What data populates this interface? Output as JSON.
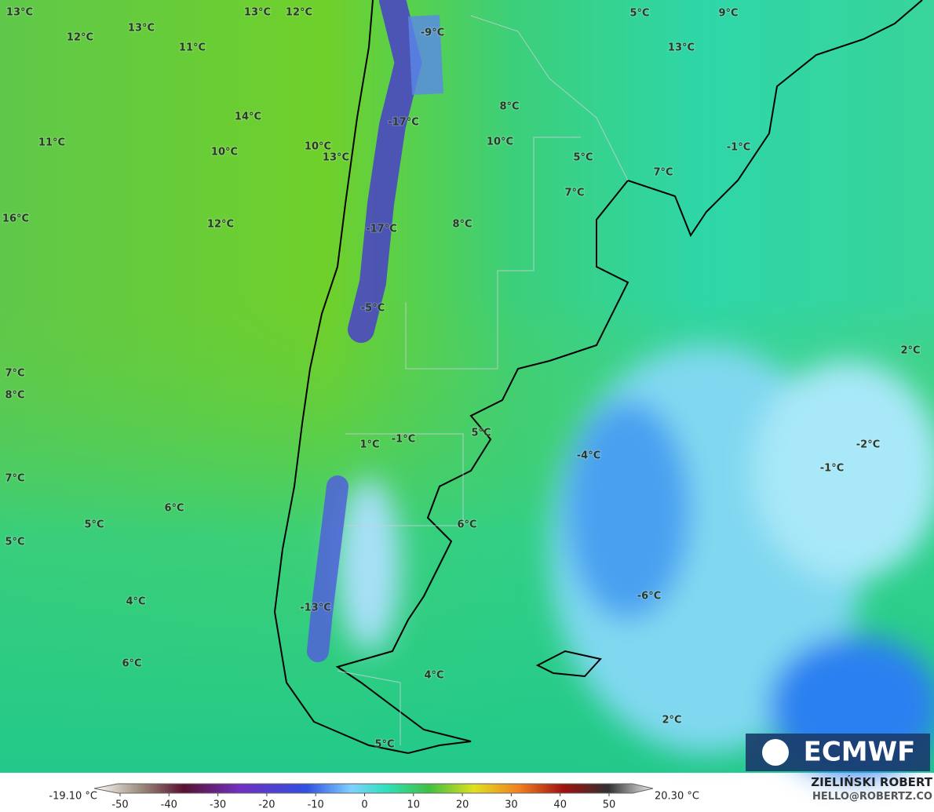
{
  "map": {
    "labels": [
      "13°C",
      "13°C",
      "12°C",
      "13°C",
      "12°C",
      "11°C",
      "-9°C",
      "5°C",
      "9°C",
      "13°C",
      "14°C",
      "-17°C",
      "8°C",
      "10°C",
      "11°C",
      "10°C",
      "10°C",
      "13°C",
      "-1°C",
      "5°C",
      "7°C",
      "7°C",
      "16°C",
      "12°C",
      "-17°C",
      "8°C",
      "-5°C",
      "2°C",
      "7°C",
      "8°C",
      "1°C",
      "-1°C",
      "5°C",
      "-2°C",
      "-4°C",
      "-1°C",
      "7°C",
      "6°C",
      "5°C",
      "6°C",
      "5°C",
      "-6°C",
      "4°C",
      "-13°C",
      "6°C",
      "4°C",
      "2°C",
      "5°C"
    ],
    "logo": "ECMWF"
  },
  "colorbar": {
    "min_label": "-19.10 °C",
    "max_label": "20.30 °C",
    "ticks": [
      -50,
      -40,
      -30,
      -20,
      -10,
      0,
      10,
      20,
      30,
      40,
      50
    ]
  },
  "credit": {
    "name": "ZIELIŃSKI ROBERT",
    "email": "HELLO@ROBERTZ.CO"
  }
}
